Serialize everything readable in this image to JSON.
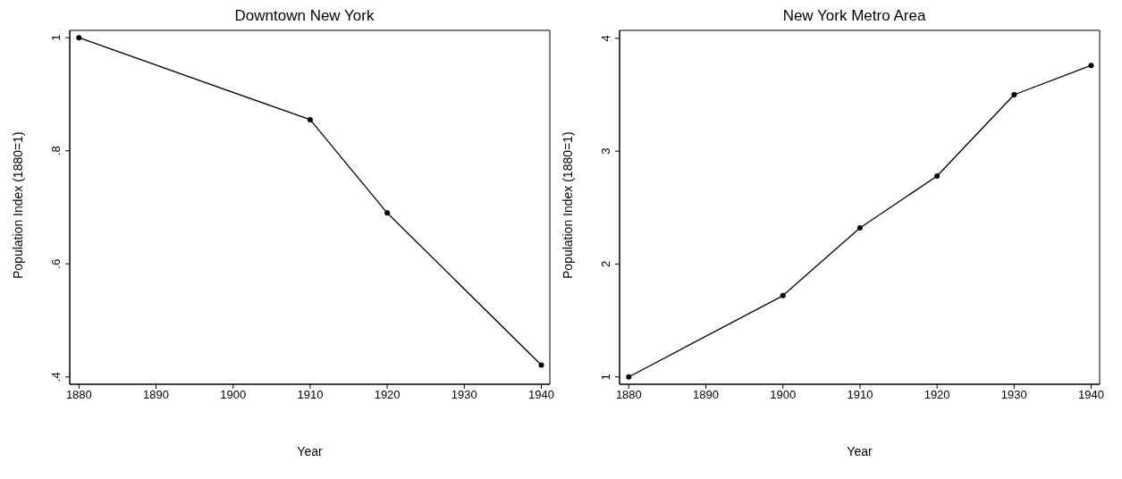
{
  "chart_data": [
    {
      "type": "line",
      "title": "Downtown New York",
      "xlabel": "Year",
      "ylabel": "Population Index (1880=1)",
      "x": [
        1880,
        1910,
        1920,
        1940
      ],
      "series": [
        {
          "color": "#000000",
          "values": [
            1,
            0.855,
            0.69,
            0.421
          ]
        }
      ],
      "xlim": [
        1878.8,
        1941.1
      ],
      "xticks": [
        1880,
        1890,
        1900,
        1910,
        1920,
        1930,
        1940
      ],
      "ylim": [
        0.387,
        1.013
      ],
      "yticks": [
        {
          "value": 0.4,
          "label": ".4"
        },
        {
          "value": 0.6,
          "label": ".6"
        },
        {
          "value": 0.8,
          "label": ".8"
        },
        1
      ],
      "marker": "circle",
      "grid": false,
      "legend": false
    },
    {
      "type": "line",
      "title": "New York Metro Area",
      "xlabel": "Year",
      "ylabel": "Population Index (1880=1)",
      "x": [
        1880,
        1900,
        1910,
        1920,
        1930,
        1940
      ],
      "series": [
        {
          "color": "#000000",
          "values": [
            1,
            1.72,
            2.32,
            2.78,
            3.5,
            3.76
          ]
        }
      ],
      "xlim": [
        1878.8,
        1941.1
      ],
      "xticks": [
        1880,
        1890,
        1900,
        1910,
        1920,
        1930,
        1940
      ],
      "ylim": [
        0.935,
        4.07
      ],
      "yticks": [
        1,
        2,
        3,
        4
      ],
      "marker": "circle",
      "grid": false,
      "legend": false
    }
  ]
}
